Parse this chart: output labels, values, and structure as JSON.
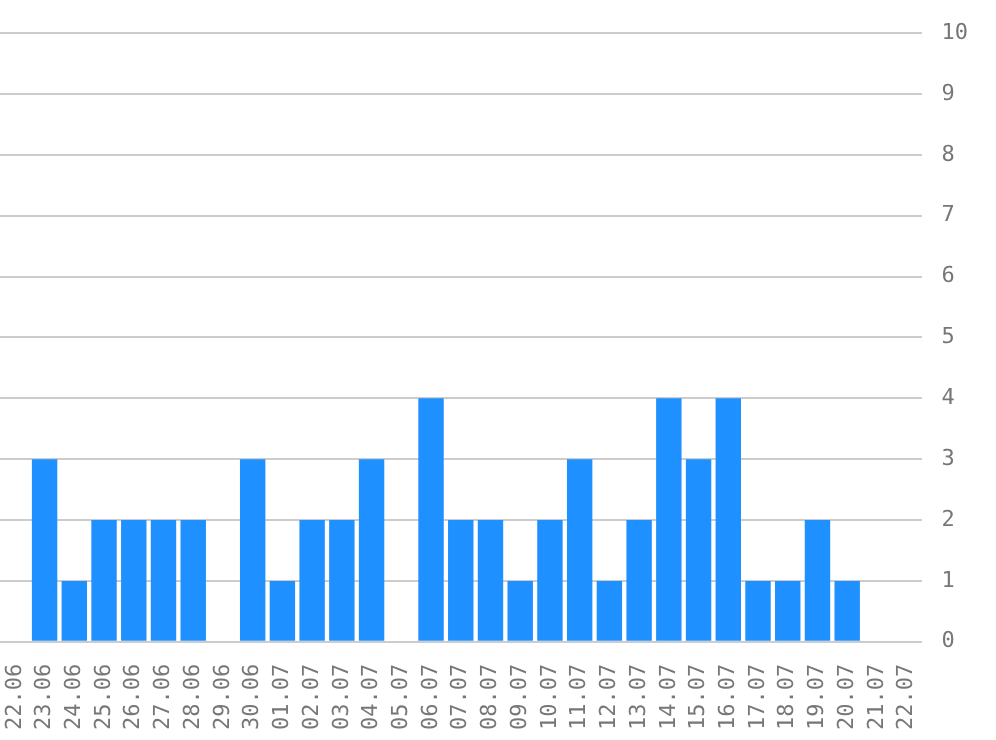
{
  "chart_data": {
    "type": "bar",
    "categories": [
      "22.06",
      "23.06",
      "24.06",
      "25.06",
      "26.06",
      "27.06",
      "28.06",
      "29.06",
      "30.06",
      "01.07",
      "02.07",
      "03.07",
      "04.07",
      "05.07",
      "06.07",
      "07.07",
      "08.07",
      "09.07",
      "10.07",
      "11.07",
      "12.07",
      "13.07",
      "14.07",
      "15.07",
      "16.07",
      "17.07",
      "18.07",
      "19.07",
      "20.07",
      "21.07",
      "22.07"
    ],
    "values": [
      0,
      3,
      1,
      2,
      2,
      2,
      2,
      0,
      3,
      1,
      2,
      2,
      3,
      0,
      4,
      2,
      2,
      1,
      2,
      3,
      1,
      2,
      4,
      3,
      4,
      1,
      1,
      2,
      1,
      0,
      0
    ],
    "color": "#1e90ff",
    "ylim": [
      0,
      10
    ],
    "yticks": [
      0,
      1,
      2,
      3,
      4,
      5,
      6,
      7,
      8,
      9,
      10
    ],
    "grid": "y"
  }
}
